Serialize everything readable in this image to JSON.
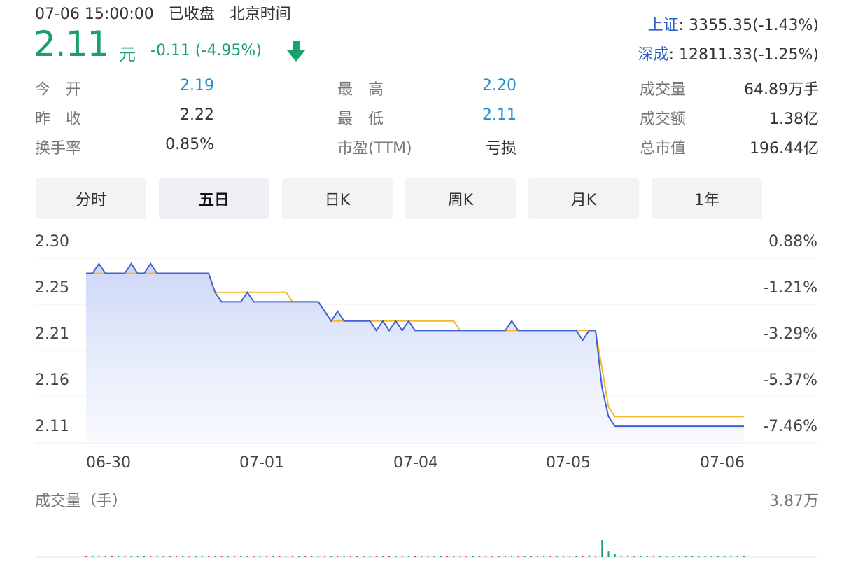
{
  "header": {
    "time": "07-06 15:00:00",
    "status": "已收盘",
    "zone": "北京时间",
    "price": "2.11",
    "unit": "元",
    "change": "-0.11 (-4.95%)"
  },
  "indices": [
    {
      "name": "上证",
      "value": ": 3355.35(-1.43%)"
    },
    {
      "name": "深成",
      "value": ": 12811.33(-1.25%)"
    }
  ],
  "stats": {
    "open_label": "今　开",
    "open": "2.19",
    "high_label": "最　高",
    "high": "2.20",
    "volume_label": "成交量",
    "volume": "64.89万手",
    "prev_label": "昨　收",
    "prev": "2.22",
    "low_label": "最　低",
    "low": "2.11",
    "amount_label": "成交额",
    "amount": "1.38亿",
    "turnover_label": "换手率",
    "turnover": "0.85%",
    "pe_label": "市盈(TTM)",
    "pe": "亏损",
    "mcap_label": "总市值",
    "mcap": "196.44亿"
  },
  "tabs": [
    "分时",
    "五日",
    "日K",
    "周K",
    "月K",
    "1年"
  ],
  "active_tab": 1,
  "colors": {
    "up": "#e03c3c",
    "down": "#1aa06a",
    "price_line": "#3f62d4",
    "avg_line": "#f5b82e",
    "index_name": "#2f5fc8"
  },
  "chart_data": {
    "type": "line",
    "y_ticks": [
      "2.30",
      "2.25",
      "2.21",
      "2.16",
      "2.11"
    ],
    "y_ticks_right": [
      "0.88%",
      "-1.21%",
      "-3.29%",
      "-5.37%",
      "-7.46%"
    ],
    "ylim": [
      2.102,
      2.304
    ],
    "x_labels": [
      "06-30",
      "07-01",
      "07-04",
      "07-05",
      "07-06"
    ],
    "series": [
      {
        "values": [
          2.27,
          2.27,
          2.28,
          2.27,
          2.27,
          2.27,
          2.27,
          2.28,
          2.27,
          2.27,
          2.28,
          2.27,
          2.27,
          2.27,
          2.27,
          2.27,
          2.27,
          2.27,
          2.27,
          2.27,
          2.25,
          2.24,
          2.24,
          2.24,
          2.24,
          2.25,
          2.24,
          2.24,
          2.24,
          2.24,
          2.24,
          2.24,
          2.24,
          2.24,
          2.24,
          2.24,
          2.24,
          2.23,
          2.22,
          2.23,
          2.22,
          2.22,
          2.22,
          2.22,
          2.22,
          2.21,
          2.22,
          2.21,
          2.22,
          2.21,
          2.22,
          2.21,
          2.21,
          2.21,
          2.21,
          2.21,
          2.21,
          2.21,
          2.21,
          2.21,
          2.21,
          2.21,
          2.21,
          2.21,
          2.21,
          2.21,
          2.22,
          2.21,
          2.21,
          2.21,
          2.21,
          2.21,
          2.21,
          2.21,
          2.21,
          2.21,
          2.21,
          2.2,
          2.21,
          2.21,
          2.15,
          2.12,
          2.11,
          2.11,
          2.11,
          2.11,
          2.11,
          2.11,
          2.11,
          2.11,
          2.11,
          2.11,
          2.11,
          2.11,
          2.11,
          2.11,
          2.11,
          2.11,
          2.11,
          2.11,
          2.11,
          2.11,
          2.11
        ]
      },
      {
        "values": [
          2.27,
          2.27,
          2.27,
          2.27,
          2.27,
          2.27,
          2.27,
          2.27,
          2.27,
          2.27,
          2.27,
          2.27,
          2.27,
          2.27,
          2.27,
          2.27,
          2.27,
          2.27,
          2.27,
          2.27,
          2.25,
          2.25,
          2.25,
          2.25,
          2.25,
          2.25,
          2.25,
          2.25,
          2.25,
          2.25,
          2.25,
          2.25,
          2.24,
          2.24,
          2.24,
          2.24,
          2.24,
          2.23,
          2.22,
          2.22,
          2.22,
          2.22,
          2.22,
          2.22,
          2.22,
          2.22,
          2.22,
          2.22,
          2.22,
          2.22,
          2.22,
          2.22,
          2.22,
          2.22,
          2.22,
          2.22,
          2.22,
          2.22,
          2.21,
          2.21,
          2.21,
          2.21,
          2.21,
          2.21,
          2.21,
          2.21,
          2.21,
          2.21,
          2.21,
          2.21,
          2.21,
          2.21,
          2.21,
          2.21,
          2.21,
          2.21,
          2.21,
          2.21,
          2.21,
          2.21,
          2.17,
          2.13,
          2.12,
          2.12,
          2.12,
          2.12,
          2.12,
          2.12,
          2.12,
          2.12,
          2.12,
          2.12,
          2.12,
          2.12,
          2.12,
          2.12,
          2.12,
          2.12,
          2.12,
          2.12,
          2.12,
          2.12,
          2.12
        ]
      }
    ]
  },
  "volume": {
    "label": "成交量（手）",
    "max_label": "3.87万",
    "max": 38700,
    "values": [
      500,
      80,
      120,
      60,
      90,
      40,
      150,
      60,
      70,
      300,
      50,
      60,
      80,
      40,
      100,
      90,
      200,
      1200,
      200,
      300,
      80,
      60,
      50,
      90,
      40,
      70,
      60,
      60,
      80,
      50,
      120,
      40,
      80,
      60,
      40,
      100,
      600,
      200,
      400,
      90,
      70,
      50,
      60,
      40,
      100,
      60,
      80,
      60,
      70,
      40,
      90,
      60,
      70,
      80,
      50,
      70,
      60,
      900,
      100,
      80,
      120,
      60,
      70,
      80,
      60,
      90,
      70,
      80,
      700,
      500,
      80,
      90,
      100,
      120,
      60,
      80,
      200,
      300,
      1800,
      700,
      16000,
      5000,
      3000,
      1200,
      1500,
      900,
      600,
      300,
      200,
      150,
      120,
      100,
      100,
      80,
      80,
      60,
      60,
      60,
      50,
      50,
      40,
      40,
      200
    ],
    "dirs": [
      "u",
      "d",
      "u",
      "d",
      "u",
      "d",
      "u",
      "d",
      "d",
      "d",
      "u",
      "d",
      "u",
      "d",
      "u",
      "d",
      "u",
      "d",
      "d",
      "u",
      "d",
      "u",
      "d",
      "u",
      "d",
      "d",
      "u",
      "d",
      "u",
      "d",
      "u",
      "d",
      "u",
      "d",
      "u",
      "d",
      "d",
      "u",
      "d",
      "u",
      "d",
      "u",
      "d",
      "u",
      "d",
      "u",
      "d",
      "u",
      "d",
      "u",
      "d",
      "u",
      "d",
      "u",
      "d",
      "d",
      "u",
      "u",
      "d",
      "u",
      "d",
      "u",
      "d",
      "u",
      "d",
      "u",
      "d",
      "u",
      "d",
      "d",
      "u",
      "d",
      "u",
      "d",
      "u",
      "d",
      "d",
      "u",
      "d",
      "d",
      "d",
      "d",
      "d",
      "d",
      "d",
      "d",
      "d",
      "d",
      "d",
      "d",
      "d",
      "d",
      "d",
      "d",
      "d",
      "d",
      "d",
      "d",
      "d",
      "d",
      "d",
      "d",
      "d"
    ]
  }
}
